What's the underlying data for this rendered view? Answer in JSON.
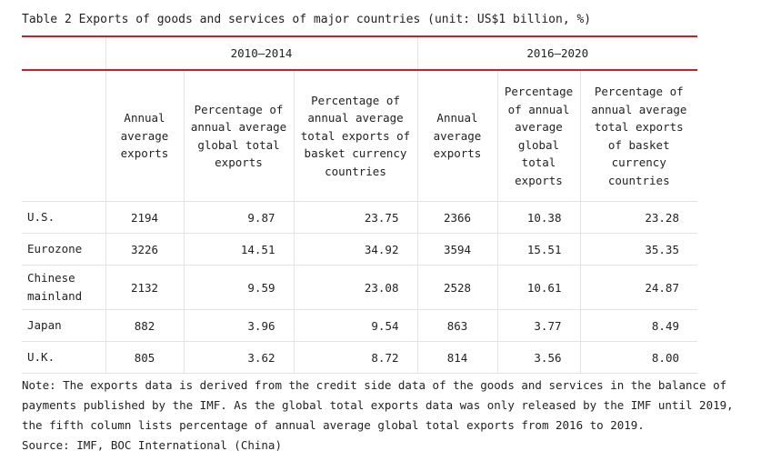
{
  "title": "Table 2  Exports of goods and services of major countries (unit: US$1 billion, %)",
  "periods": [
    "2010—2014",
    "2016—2020"
  ],
  "columns": [
    "Annual average exports",
    "Percentage of annual average global total exports",
    "Percentage of annual average total exports of basket currency countries",
    "Annual average exports",
    "Percentage of annual average global total exports",
    "Percentage of annual average total exports of basket currency countries"
  ],
  "rows": [
    {
      "country": "U.S.",
      "values": [
        "2194",
        "9.87",
        "23.75",
        "2366",
        "10.38",
        "23.28"
      ]
    },
    {
      "country": "Eurozone",
      "values": [
        "3226",
        "14.51",
        "34.92",
        "3594",
        "15.51",
        "35.35"
      ]
    },
    {
      "country": "Chinese mainland",
      "values": [
        "2132",
        "9.59",
        "23.08",
        "2528",
        "10.61",
        "24.87"
      ]
    },
    {
      "country": "Japan",
      "values": [
        "882",
        "3.96",
        "9.54",
        "863",
        "3.77",
        "8.49"
      ]
    },
    {
      "country": "U.K.",
      "values": [
        "805",
        "3.62",
        "8.72",
        "814",
        "3.56",
        "8.00"
      ]
    }
  ],
  "note": "Note: The exports data is derived from the credit side data of the goods and services in the balance of payments published by the IMF. As the global total exports data was only released by the IMF until 2019, the fifth column lists percentage of annual average global total exports from 2016 to 2019.",
  "source": "Source: IMF, BOC International (China)",
  "colors": {
    "rule": "#c8202a",
    "grid": "#e3e3e3",
    "text": "#222222"
  }
}
